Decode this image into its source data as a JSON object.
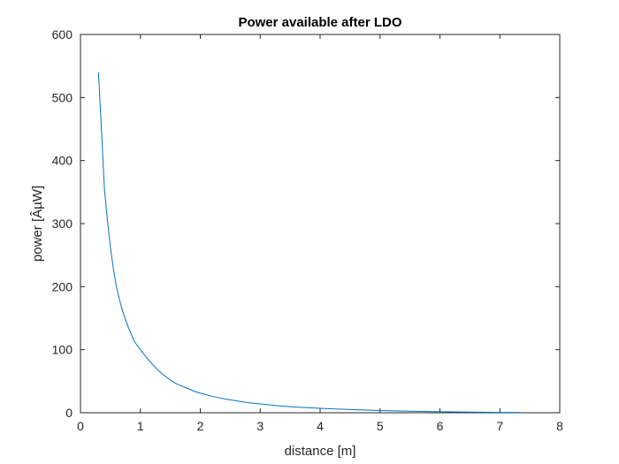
{
  "chart_data": {
    "type": "line",
    "title": "Power available after LDO",
    "xlabel": "distance [m]",
    "ylabel": "power [ÂµW]",
    "xlim": [
      0,
      8
    ],
    "ylim": [
      0,
      600
    ],
    "xticks": [
      0,
      1,
      2,
      3,
      4,
      5,
      6,
      7,
      8
    ],
    "yticks": [
      0,
      100,
      200,
      300,
      400,
      500,
      600
    ],
    "grid": false,
    "series": [
      {
        "color": "#0072bd",
        "x": [
          0.3,
          0.35,
          0.4,
          0.45,
          0.5,
          0.55,
          0.6,
          0.65,
          0.7,
          0.8,
          0.9,
          1.0,
          1.1,
          1.2,
          1.3,
          1.4,
          1.5,
          1.6,
          1.7,
          1.8,
          1.9,
          2.0,
          2.2,
          2.4,
          2.6,
          2.8,
          3.0,
          3.3,
          3.6,
          4.0,
          4.5,
          5.0,
          5.5,
          6.0,
          6.5,
          7.0,
          7.35
        ],
        "y": [
          540,
          450,
          355,
          305,
          262,
          228,
          200,
          180,
          162,
          135,
          113,
          100,
          88,
          77,
          67,
          59,
          52,
          46,
          42,
          38,
          34,
          31,
          26,
          22,
          19,
          16,
          14,
          11,
          9,
          7,
          5,
          3.5,
          2.5,
          1.5,
          1,
          0.5,
          0.3
        ]
      }
    ]
  }
}
